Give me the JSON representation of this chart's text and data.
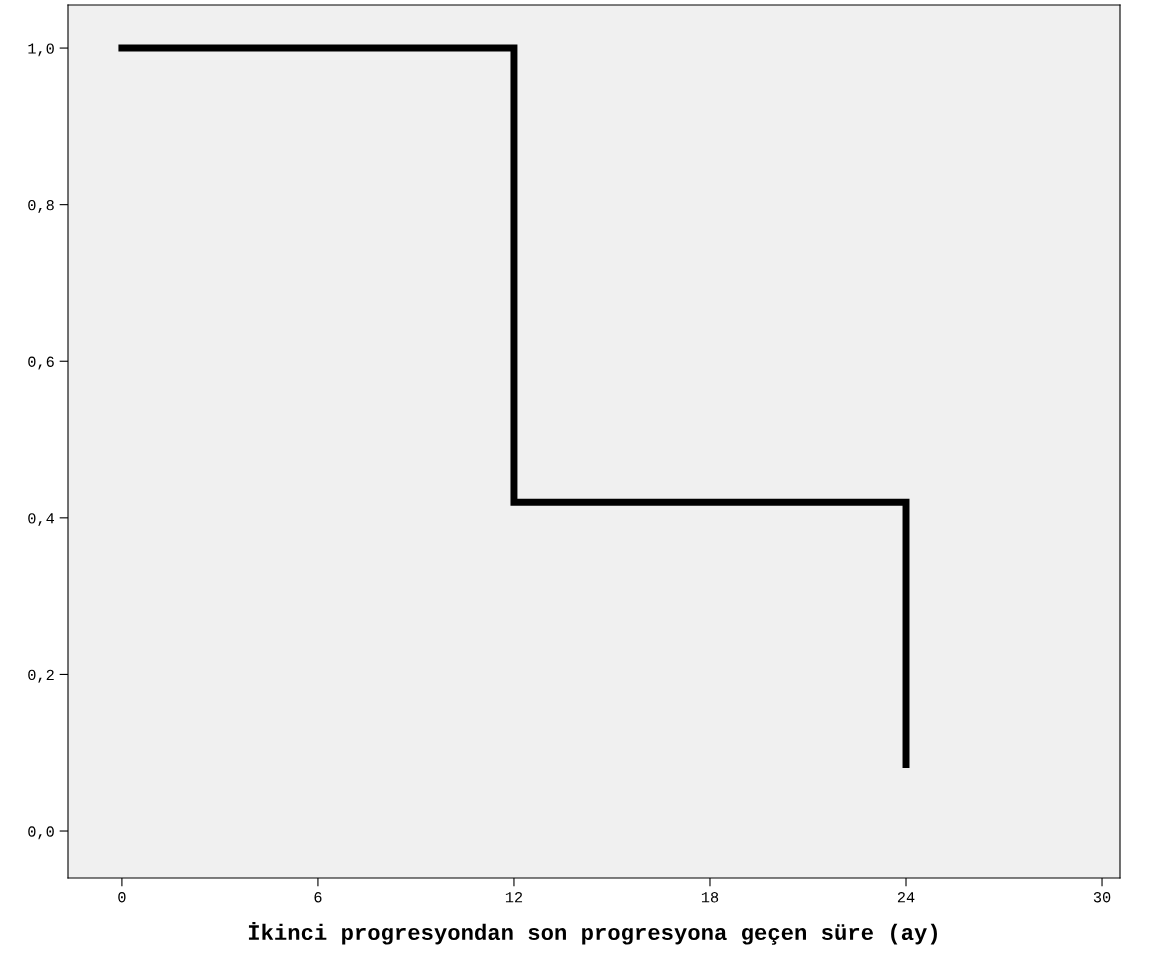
{
  "chart_data": {
    "type": "step",
    "xlabel": "İkinci progresyondan son progresyona geçen süre (ay)",
    "x": [
      0,
      12,
      24,
      24
    ],
    "series": [
      {
        "color": "#000000",
        "values": [
          1.0,
          0.42,
          0.42,
          0.085
        ]
      }
    ],
    "xlim": [
      -1.65,
      30.55
    ],
    "ylim": [
      -0.06,
      1.055
    ],
    "xticks": [
      0,
      6,
      12,
      18,
      24,
      30
    ],
    "yticks": [
      {
        "value": 0.0,
        "label": "0,0"
      },
      {
        "value": 0.2,
        "label": "0,2"
      },
      {
        "value": 0.4,
        "label": "0,4"
      },
      {
        "value": 0.6,
        "label": "0,6"
      },
      {
        "value": 0.8,
        "label": "0,8"
      },
      {
        "value": 1.0,
        "label": "1,0"
      }
    ],
    "grid": false,
    "legend": false
  }
}
